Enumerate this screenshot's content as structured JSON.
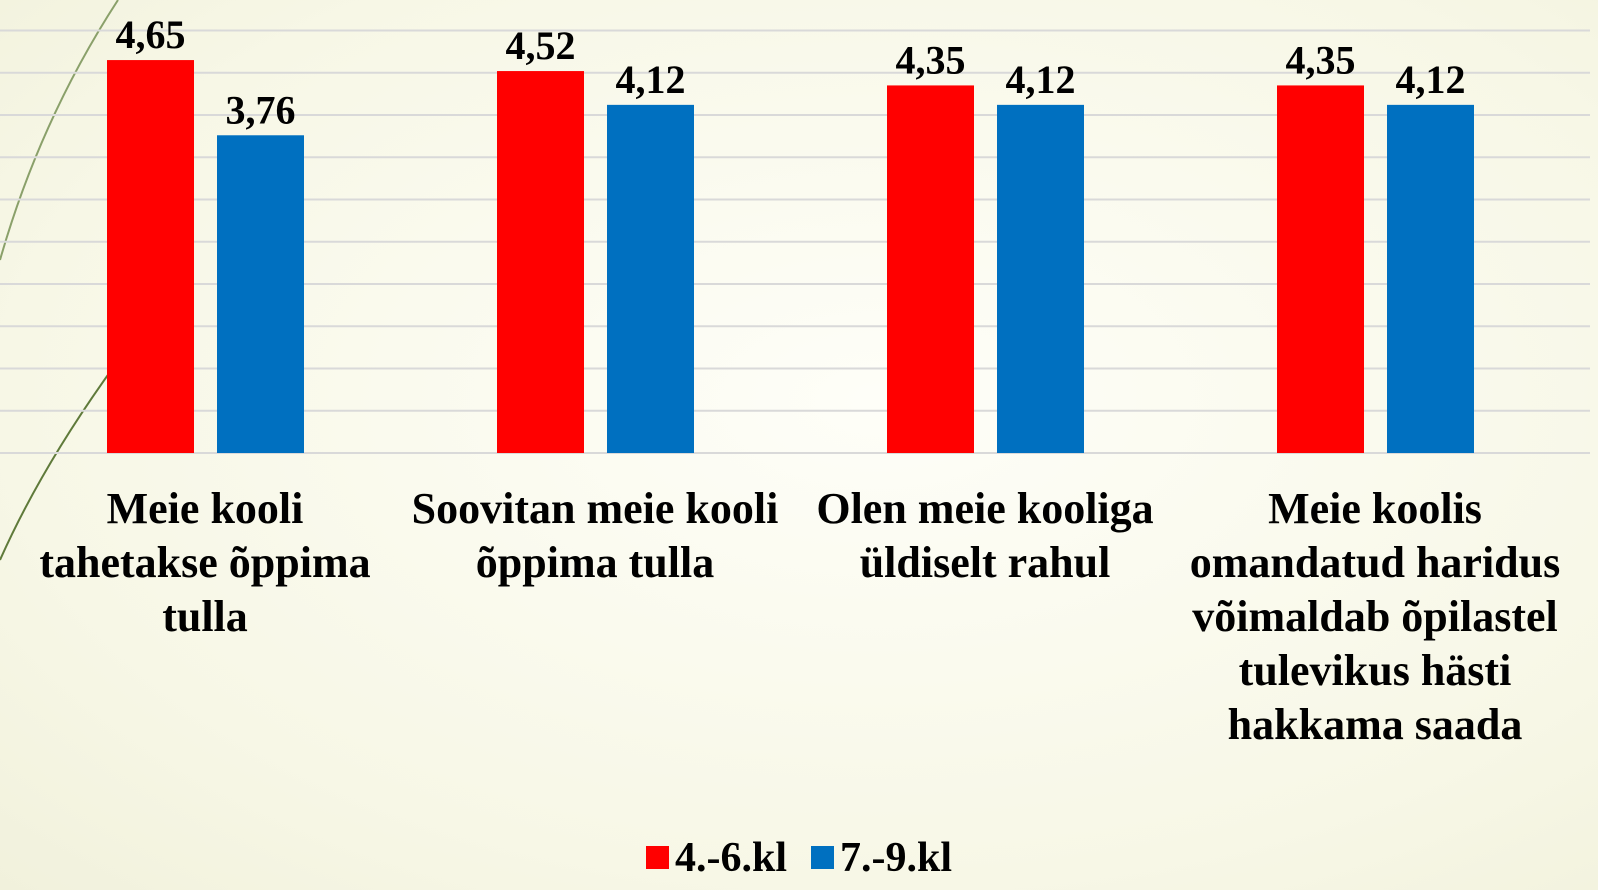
{
  "chart_data": {
    "type": "bar",
    "categories": [
      "Meie kooli tahetakse õppima tulla",
      "Soovitan meie kooli õppima tulla",
      "Olen meie kooliga üldiselt rahul",
      "Meie koolis omandatud haridus võimaldab õpilastel tulevikus hästi hakkama saada"
    ],
    "series": [
      {
        "name": "4.-6.kl",
        "color": "#ff0000",
        "values": [
          4.65,
          4.52,
          4.35,
          4.35
        ],
        "value_labels": [
          "4,65",
          "4,52",
          "4,35",
          "4,35"
        ]
      },
      {
        "name": "7.-9.kl",
        "color": "#0070c0",
        "values": [
          3.76,
          4.12,
          4.12,
          4.12
        ],
        "value_labels": [
          "3,76",
          "4,12",
          "4,12",
          "4,12"
        ]
      }
    ],
    "ylim": [
      0,
      5
    ],
    "yticks": [
      0,
      0.5,
      1,
      1.5,
      2,
      2.5,
      3,
      3.5,
      4,
      4.5,
      5
    ],
    "grid": true,
    "legend": "bottom"
  }
}
